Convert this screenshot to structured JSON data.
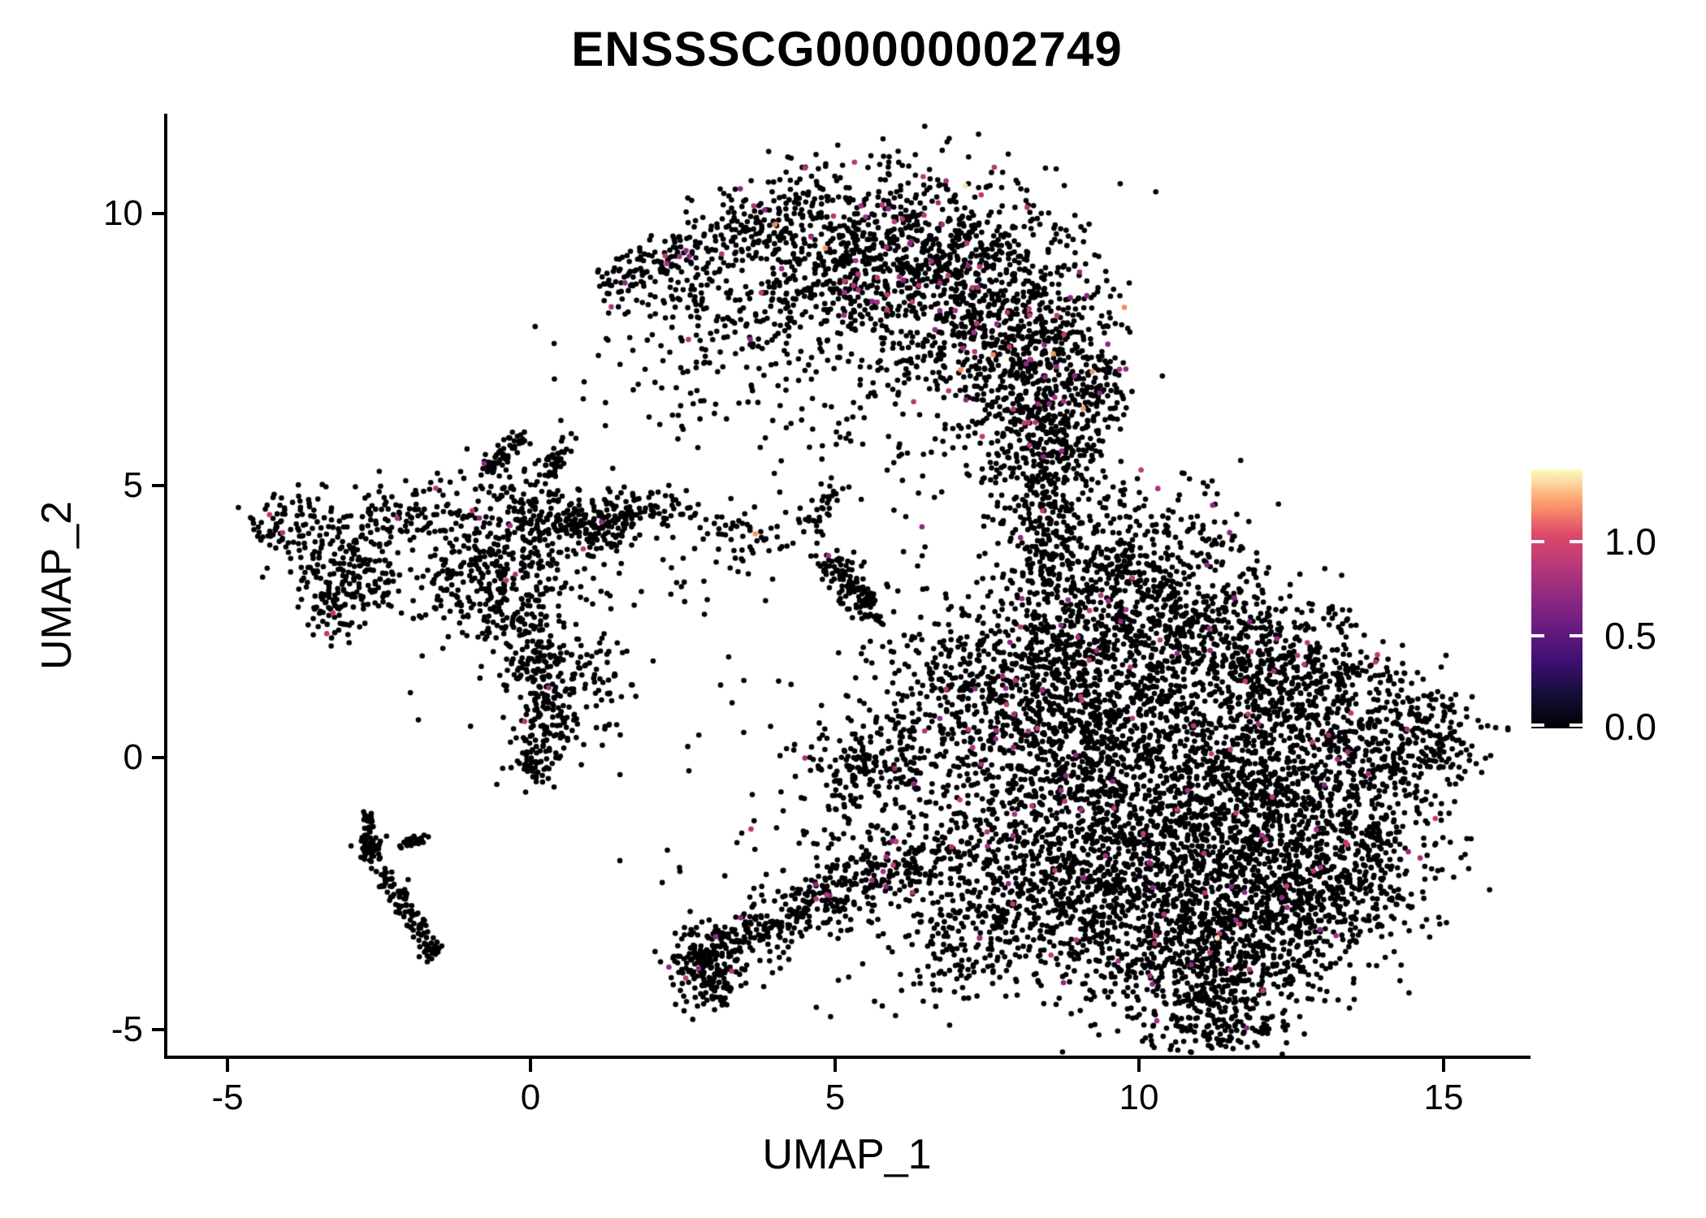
{
  "title": "ENSSSCG00000002749",
  "colors": {
    "background": "#ffffff",
    "axis": "#000000",
    "text": "#000000"
  },
  "axes": {
    "x": {
      "label": "UMAP_1",
      "tick_labels": [
        "-5",
        "0",
        "5",
        "10",
        "15"
      ],
      "tick_values": [
        -5,
        0,
        5,
        10,
        15
      ]
    },
    "y": {
      "label": "UMAP_2",
      "tick_labels": [
        "10",
        "5",
        "0",
        "-5"
      ],
      "tick_values": [
        10,
        5,
        0,
        -5
      ]
    }
  },
  "legend": {
    "ticks": [
      "1.0",
      "0.5",
      "0.0"
    ],
    "tick_values": [
      1.0,
      0.5,
      0.0
    ],
    "scale_max": 1.4,
    "colormap": "magma",
    "colormap_stops": [
      "#000004",
      "#140e36",
      "#3b0f70",
      "#641a80",
      "#8c2981",
      "#b73779",
      "#de4968",
      "#fe9f6d",
      "#fcfdbf"
    ]
  },
  "chart_data": {
    "type": "scatter",
    "title": "ENSSSCG00000002749",
    "xlabel": "UMAP_1",
    "ylabel": "UMAP_2",
    "xlim": [
      -5.98,
      16.38
    ],
    "ylim": [
      -5.51,
      11.84
    ],
    "grid": false,
    "legend_position": "right",
    "point_radius": 3.3,
    "seed": 42,
    "palette": {
      "zero": "#000004",
      "pink": [
        "#a3307e",
        "#b63679",
        "#8c2981",
        "#c03a72"
      ],
      "orange": [
        "#f8855c",
        "#f09c62"
      ],
      "cream": "#f9e9a0"
    },
    "clusters": [
      {
        "name": "crescent-arm",
        "path": [
          [
            1.2,
            8.65
          ],
          [
            2.0,
            9.1
          ],
          [
            3.0,
            9.6
          ],
          [
            4.1,
            10.05
          ],
          [
            5.0,
            10.35
          ]
        ],
        "s": 0.18,
        "s2": 0.45,
        "n": 240,
        "p": 0.05,
        "o": 0.006
      },
      {
        "name": "crescent-left",
        "cx": 4.7,
        "cy": 9.0,
        "sx": 0.85,
        "sy": 0.65,
        "n": 300,
        "p": 0.045,
        "o": 0.005
      },
      {
        "name": "crescent-top",
        "cx": 6.1,
        "cy": 9.4,
        "sx": 1.0,
        "sy": 0.75,
        "n": 520,
        "p": 0.045,
        "o": 0.005,
        "c": 0.001
      },
      {
        "name": "crescent-mid",
        "cx": 7.4,
        "cy": 8.4,
        "sx": 0.85,
        "sy": 0.95,
        "n": 560,
        "p": 0.045,
        "o": 0.005,
        "c": 0.001
      },
      {
        "name": "crescent-right",
        "cx": 8.3,
        "cy": 7.0,
        "sx": 0.65,
        "sy": 1.0,
        "n": 430,
        "p": 0.04,
        "o": 0.004
      },
      {
        "name": "crescent-lower",
        "cx": 8.55,
        "cy": 5.7,
        "sx": 0.5,
        "sy": 0.65,
        "n": 240,
        "p": 0.04,
        "o": 0.004
      },
      {
        "name": "crescent-fringe-left",
        "cx": 3.3,
        "cy": 7.9,
        "sx": 0.75,
        "sy": 0.8,
        "n": 110,
        "p": 0.02
      },
      {
        "name": "crescent-interior-sparse",
        "cx": 5.5,
        "cy": 7.1,
        "sx": 1.0,
        "sy": 0.95,
        "n": 140,
        "p": 0.02
      },
      {
        "name": "crescent-underarm",
        "cx": 2.4,
        "cy": 8.6,
        "sx": 0.5,
        "sy": 0.45,
        "n": 70,
        "p": 0.02
      },
      {
        "name": "crescent-neck",
        "path": [
          [
            8.45,
            4.9
          ],
          [
            8.35,
            4.2
          ],
          [
            8.6,
            3.5
          ]
        ],
        "s": 0.3,
        "n": 130,
        "p": 0.03
      },
      {
        "name": "crescent-edge-bulge",
        "cx": 9.35,
        "cy": 6.9,
        "sx": 0.3,
        "sy": 0.55,
        "n": 90,
        "p": 0.03
      },
      {
        "name": "blob-top1",
        "cx": 9.1,
        "cy": 2.9,
        "sx": 0.75,
        "sy": 0.85,
        "n": 360,
        "p": 0.018,
        "o": 0.0015
      },
      {
        "name": "blob-top2",
        "cx": 10.3,
        "cy": 3.6,
        "sx": 0.75,
        "sy": 0.75,
        "n": 260,
        "p": 0.018
      },
      {
        "name": "blob-topright1",
        "cx": 11.4,
        "cy": 2.4,
        "sx": 0.7,
        "sy": 0.7,
        "n": 240,
        "p": 0.018
      },
      {
        "name": "blob-topright2",
        "cx": 12.4,
        "cy": 1.7,
        "sx": 0.7,
        "sy": 0.7,
        "n": 220,
        "p": 0.018
      },
      {
        "name": "blob-left-protrusion",
        "cx": 6.95,
        "cy": 1.2,
        "sx": 0.55,
        "sy": 0.8,
        "n": 210,
        "p": 0.02
      },
      {
        "name": "blob-upper1",
        "cx": 8.3,
        "cy": 1.3,
        "sx": 0.85,
        "sy": 0.85,
        "n": 360,
        "p": 0.018
      },
      {
        "name": "blob-upper2",
        "cx": 9.9,
        "cy": 1.6,
        "sx": 0.95,
        "sy": 0.85,
        "n": 400,
        "p": 0.018,
        "o": 0.0015
      },
      {
        "name": "blob-right1",
        "cx": 12.9,
        "cy": 0.9,
        "sx": 0.8,
        "sy": 0.8,
        "n": 260,
        "p": 0.018
      },
      {
        "name": "blob-right-lobe",
        "cx": 14.1,
        "cy": 0.5,
        "sx": 0.7,
        "sy": 0.65,
        "n": 230,
        "p": 0.015
      },
      {
        "name": "blob-right-tip",
        "cx": 15.0,
        "cy": 0.15,
        "sx": 0.3,
        "sy": 0.45,
        "n": 70,
        "p": 0.015
      },
      {
        "name": "blob-core1",
        "cx": 9.0,
        "cy": -0.1,
        "sx": 1.0,
        "sy": 0.95,
        "n": 430,
        "p": 0.018,
        "o": 0.0015
      },
      {
        "name": "blob-core2",
        "cx": 10.7,
        "cy": -0.3,
        "sx": 1.05,
        "sy": 0.95,
        "n": 500,
        "p": 0.02,
        "c": 0.0008
      },
      {
        "name": "blob-core3",
        "cx": 12.2,
        "cy": -0.7,
        "sx": 0.95,
        "sy": 0.9,
        "n": 400,
        "p": 0.018
      },
      {
        "name": "blob-right2",
        "cx": 13.5,
        "cy": -1.3,
        "sx": 0.75,
        "sy": 0.85,
        "n": 260,
        "p": 0.015
      },
      {
        "name": "blob-core4",
        "cx": 9.5,
        "cy": -1.8,
        "sx": 0.95,
        "sy": 0.9,
        "n": 400,
        "p": 0.02
      },
      {
        "name": "blob-core5",
        "cx": 11.1,
        "cy": -2.0,
        "sx": 1.05,
        "sy": 0.95,
        "n": 480,
        "p": 0.02,
        "o": 0.0015
      },
      {
        "name": "blob-core6",
        "cx": 12.5,
        "cy": -2.5,
        "sx": 0.85,
        "sy": 0.85,
        "n": 310,
        "p": 0.02
      },
      {
        "name": "blob-bottomright",
        "cx": 13.8,
        "cy": -2.4,
        "sx": 0.55,
        "sy": 0.65,
        "n": 140,
        "p": 0.015
      },
      {
        "name": "blob-lower1",
        "cx": 10.3,
        "cy": -3.5,
        "sx": 0.85,
        "sy": 0.75,
        "n": 310,
        "p": 0.02
      },
      {
        "name": "blob-lower2",
        "cx": 11.7,
        "cy": -3.7,
        "sx": 0.8,
        "sy": 0.7,
        "n": 270,
        "p": 0.02,
        "c": 0.002
      },
      {
        "name": "blob-bottom",
        "cx": 11.0,
        "cy": -4.5,
        "sx": 0.65,
        "sy": 0.5,
        "n": 160,
        "p": 0.015
      },
      {
        "name": "blob-bottom-tip",
        "cx": 11.4,
        "cy": -5.1,
        "sx": 0.45,
        "sy": 0.3,
        "n": 55,
        "p": 0.01
      },
      {
        "name": "blob-sw1",
        "cx": 8.5,
        "cy": -2.9,
        "sx": 0.75,
        "sy": 0.75,
        "n": 250,
        "p": 0.02
      },
      {
        "name": "blob-west-edge",
        "cx": 7.7,
        "cy": -1.7,
        "sx": 0.55,
        "sy": 0.85,
        "n": 190,
        "p": 0.02
      },
      {
        "name": "blob-sw-fringe",
        "cx": 7.1,
        "cy": -3.4,
        "sx": 0.65,
        "sy": 0.6,
        "n": 140,
        "p": 0.025
      },
      {
        "name": "mid-knot",
        "cx": 5.55,
        "cy": -0.15,
        "sx": 0.5,
        "sy": 0.42,
        "n": 160,
        "p": 0.012
      },
      {
        "name": "mid-knot-halo",
        "cx": 5.7,
        "cy": -0.1,
        "sx": 0.95,
        "sy": 0.8,
        "n": 90,
        "p": 0.01
      },
      {
        "name": "arm-tip-knot",
        "cx": 2.9,
        "cy": -3.75,
        "sx": 0.3,
        "sy": 0.35,
        "n": 150,
        "p": 0.015
      },
      {
        "name": "arm-tip-trail",
        "cx": 3.05,
        "cy": -4.15,
        "sx": 0.22,
        "sy": 0.25,
        "n": 45
      },
      {
        "name": "bottom-arm",
        "path": [
          [
            3.2,
            -3.45
          ],
          [
            3.9,
            -3.05
          ],
          [
            4.7,
            -2.65
          ],
          [
            5.5,
            -2.3
          ],
          [
            6.3,
            -2.0
          ],
          [
            7.0,
            -1.75
          ]
        ],
        "s": 0.25,
        "s2": 0.45,
        "n": 430,
        "p": 0.03
      },
      {
        "name": "bottom-arm-scatter",
        "cx": 5.2,
        "cy": -1.6,
        "sx": 0.9,
        "sy": 0.5,
        "n": 70,
        "p": 0.03
      },
      {
        "name": "left-spike1",
        "path": [
          [
            -0.75,
            5.2
          ],
          [
            -0.15,
            5.95
          ]
        ],
        "s": 0.1,
        "n": 60,
        "p": 0.01
      },
      {
        "name": "left-spike2",
        "path": [
          [
            0.25,
            5.25
          ],
          [
            0.6,
            5.8
          ]
        ],
        "s": 0.09,
        "n": 40,
        "p": 0.01
      },
      {
        "name": "left-upper",
        "cx": 0.0,
        "cy": 4.45,
        "sx": 0.55,
        "sy": 0.42,
        "n": 170,
        "p": 0.012,
        "o": 0.004
      },
      {
        "name": "left-rightblob",
        "cx": 1.15,
        "cy": 4.3,
        "sx": 0.42,
        "sy": 0.3,
        "n": 130,
        "p": 0.012
      },
      {
        "name": "left-rightwisp",
        "cx": 1.9,
        "cy": 4.55,
        "sx": 0.3,
        "sy": 0.18,
        "n": 40,
        "p": 0.01
      },
      {
        "name": "left-rightstray",
        "cx": 2.45,
        "cy": 4.6,
        "sx": 0.15,
        "sy": 0.12,
        "n": 12
      },
      {
        "name": "left-main",
        "cx": -0.5,
        "cy": 3.3,
        "sx": 0.7,
        "sy": 0.6,
        "n": 300,
        "p": 0.012
      },
      {
        "name": "left-wing",
        "cx": -1.95,
        "cy": 4.5,
        "sx": 0.5,
        "sy": 0.35,
        "n": 90,
        "p": 0.012,
        "o": 0.004
      },
      {
        "name": "left-tail",
        "path": [
          [
            -0.3,
            2.55
          ],
          [
            0.05,
            1.8
          ],
          [
            0.3,
            1.0
          ],
          [
            0.2,
            0.3
          ],
          [
            -0.05,
            -0.35
          ]
        ],
        "s": 0.22,
        "n": 250,
        "p": 0.012
      },
      {
        "name": "left-tail-side",
        "cx": 0.9,
        "cy": 1.45,
        "sx": 0.4,
        "sy": 0.5,
        "n": 80,
        "p": 0.02
      },
      {
        "name": "left-halo",
        "cx": 0.0,
        "cy": 3.2,
        "sx": 1.25,
        "sy": 1.35,
        "n": 110,
        "p": 0.01
      },
      {
        "name": "far-left-top",
        "cx": -3.9,
        "cy": 4.3,
        "sx": 0.33,
        "sy": 0.28,
        "n": 75,
        "p": 0.012
      },
      {
        "name": "far-left-main",
        "cx": -3.05,
        "cy": 3.55,
        "sx": 0.42,
        "sy": 0.48,
        "n": 150,
        "p": 0.012
      },
      {
        "name": "far-left-tail",
        "cx": -3.25,
        "cy": 2.7,
        "sx": 0.22,
        "sy": 0.32,
        "n": 55,
        "p": 0.012
      },
      {
        "name": "far-left-wisp",
        "cx": -2.6,
        "cy": 3.1,
        "sx": 0.2,
        "sy": 0.18,
        "n": 30
      },
      {
        "name": "arc-top",
        "path": [
          [
            -2.63,
            -1.0
          ],
          [
            -2.66,
            -1.45
          ]
        ],
        "s": 0.05,
        "n": 22
      },
      {
        "name": "arc-knot",
        "cx": -2.62,
        "cy": -1.7,
        "sx": 0.11,
        "sy": 0.13,
        "n": 45,
        "p": 0.006
      },
      {
        "name": "arc-arm",
        "path": [
          [
            -2.5,
            -2.0
          ],
          [
            -2.25,
            -2.45
          ],
          [
            -1.98,
            -2.9
          ],
          [
            -1.75,
            -3.25
          ]
        ],
        "s": 0.09,
        "n": 85,
        "p": 0.006
      },
      {
        "name": "arc-end",
        "cx": -1.64,
        "cy": -3.5,
        "sx": 0.12,
        "sy": 0.1,
        "n": 30
      },
      {
        "name": "arc-stray",
        "cx": -1.66,
        "cy": -3.68,
        "sx": 0.03,
        "sy": 0.03,
        "n": 2
      },
      {
        "name": "arc-rightarm",
        "path": [
          [
            -2.1,
            -1.6
          ],
          [
            -1.76,
            -1.5
          ]
        ],
        "s": 0.07,
        "n": 26,
        "p": 0.02
      },
      {
        "name": "center-x",
        "cx": 3.6,
        "cy": 4.1,
        "sx": 0.45,
        "sy": 0.33,
        "n": 55,
        "p": 0.012,
        "o": 0.008
      },
      {
        "name": "center-uparm",
        "path": [
          [
            4.55,
            4.2
          ],
          [
            5.05,
            5.0
          ]
        ],
        "s": 0.11,
        "n": 30,
        "p": 0.015
      },
      {
        "name": "center-streak",
        "path": [
          [
            4.85,
            3.65
          ],
          [
            5.25,
            3.15
          ],
          [
            5.65,
            2.6
          ]
        ],
        "s": 0.16,
        "n": 130,
        "p": 0.012
      },
      {
        "name": "center-below",
        "cx": 5.6,
        "cy": 1.7,
        "sx": 0.35,
        "sy": 0.4,
        "n": 12
      },
      {
        "name": "center-left-stray",
        "cx": 2.9,
        "cy": 3.6,
        "sx": 0.55,
        "sy": 0.6,
        "n": 20
      },
      {
        "name": "noise1",
        "cx": 1.1,
        "cy": 7.3,
        "sx": 0.9,
        "sy": 0.7,
        "n": 12
      },
      {
        "name": "noise2",
        "cx": 2.6,
        "cy": 6.3,
        "sx": 0.7,
        "sy": 0.6,
        "n": 10
      },
      {
        "name": "noise3",
        "cx": 6.4,
        "cy": 4.9,
        "sx": 0.5,
        "sy": 0.6,
        "n": 14
      },
      {
        "name": "noise4",
        "cx": 6.1,
        "cy": 3.6,
        "sx": 0.4,
        "sy": 0.5,
        "n": 8
      },
      {
        "name": "noise5",
        "cx": 3.9,
        "cy": 0.6,
        "sx": 0.6,
        "sy": 0.8,
        "n": 8
      },
      {
        "name": "noise6",
        "cx": 1.9,
        "cy": -1.5,
        "sx": 0.5,
        "sy": 0.8,
        "n": 6
      },
      {
        "name": "noise7",
        "cx": 4.6,
        "cy": -4.3,
        "sx": 0.8,
        "sy": 0.3,
        "n": 8
      },
      {
        "name": "noise8",
        "cx": -4.35,
        "cy": 4.0,
        "sx": 0.15,
        "sy": 0.3,
        "n": 6
      },
      {
        "name": "noise9",
        "cx": 1.6,
        "cy": 6.9,
        "sx": 0.4,
        "sy": 0.5,
        "n": 8
      }
    ]
  }
}
